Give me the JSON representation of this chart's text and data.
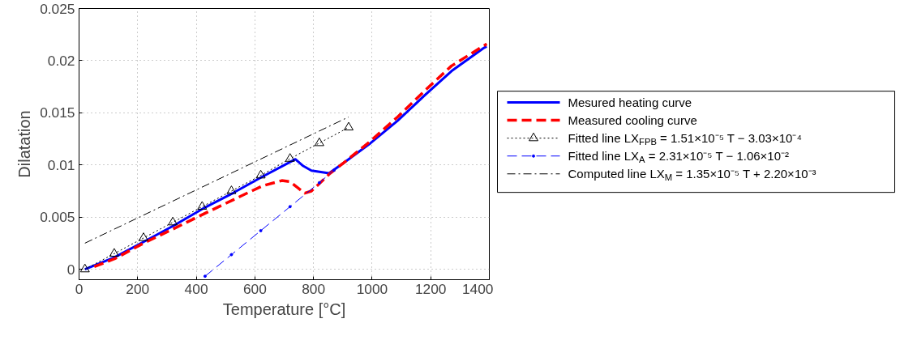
{
  "chart_data": {
    "type": "line",
    "xlabel": "Temperature [°C]",
    "ylabel": "Dilatation",
    "xlim": [
      0,
      1400
    ],
    "xticks": [
      0,
      200,
      400,
      600,
      800,
      1000,
      1200,
      1400
    ],
    "ylim": [
      -0.001,
      0.025
    ],
    "yticks": [
      0,
      0.005,
      0.01,
      0.015,
      0.02,
      0.025
    ],
    "grid": true,
    "legend": "right",
    "series": [
      {
        "name": "Mesured heating curve",
        "color": "#0000ff",
        "line_style": "solid",
        "marker": "none",
        "x": [
          20,
          121,
          223,
          324,
          425,
          526,
          627,
          728,
          738,
          765,
          793,
          853,
          903,
          995,
          1087,
          1179,
          1271,
          1382,
          1391
        ],
        "values": [
          0.0,
          0.00114,
          0.00267,
          0.0042,
          0.00585,
          0.00732,
          0.0089,
          0.0104,
          0.01055,
          0.0099,
          0.00946,
          0.0092,
          0.0102,
          0.0121,
          0.01424,
          0.01666,
          0.019,
          0.02123,
          0.02136
        ]
      },
      {
        "name": "Measured cooling curve",
        "color": "#ff0000",
        "line_style": "dashed",
        "marker": "none",
        "x": [
          52,
          121,
          223,
          324,
          425,
          526,
          581,
          627,
          692,
          719,
          747,
          770,
          793,
          857,
          903,
          995,
          1087,
          1179,
          1271,
          1391
        ],
        "values": [
          0.00025,
          0.001,
          0.00254,
          0.0039,
          0.0053,
          0.00666,
          0.0074,
          0.008,
          0.0085,
          0.0084,
          0.0078,
          0.0073,
          0.0075,
          0.0092,
          0.0102,
          0.0123,
          0.0146,
          0.0171,
          0.0195,
          0.0216
        ]
      },
      {
        "name": "Fitted line LX$_{FPB}$ = 1.51×10⁻⁵ T − 3.03×10⁻⁴",
        "color": "#000000",
        "line_style": "dotted",
        "marker": "triangle",
        "x": [
          20,
          120,
          220,
          320,
          420,
          520,
          620,
          720,
          820,
          920
        ],
        "values": [
          0.0,
          0.0015,
          0.003,
          0.0045,
          0.006,
          0.0075,
          0.009,
          0.0106,
          0.0121,
          0.0136
        ]
      },
      {
        "name": "Fitted line LX$_{A}$ = 2.31×10⁻⁵ T − 1.06×10⁻²",
        "color": "#0000ff",
        "line_style": "dashed",
        "marker": "circle",
        "x": [
          430,
          520,
          620,
          720,
          820,
          870
        ],
        "values": [
          -0.00067,
          0.0014,
          0.0037,
          0.006,
          0.0083,
          0.0095
        ]
      },
      {
        "name": "Computed line LX$_{M}$ = 1.35×10⁻⁵ T + 2.20×10⁻³",
        "color": "#000000",
        "line_style": "dashdot",
        "marker": "none",
        "x": [
          20,
          920
        ],
        "values": [
          0.0025,
          0.0146
        ]
      }
    ]
  }
}
